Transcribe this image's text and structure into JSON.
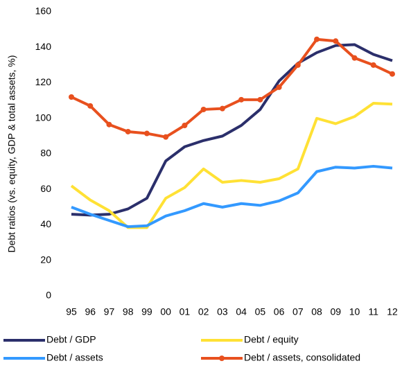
{
  "chart_data": {
    "type": "line",
    "y_label": "Debt ratios (vs. equity, GDP & total assets, %)",
    "categories": [
      "95",
      "96",
      "97",
      "98",
      "99",
      "00",
      "01",
      "02",
      "03",
      "04",
      "05",
      "06",
      "07",
      "08",
      "09",
      "10",
      "11",
      "12"
    ],
    "ylim": [
      0,
      160
    ],
    "yticks": [
      0,
      20,
      40,
      60,
      80,
      100,
      120,
      140,
      160
    ],
    "grid": false,
    "legend": "bottom",
    "series": [
      {
        "name": "Debt / GDP",
        "color": "#2b2f6b",
        "markers": false,
        "values": [
          46,
          45.5,
          46,
          49,
          55,
          76,
          84,
          87.5,
          90,
          96,
          105,
          121,
          131,
          137,
          141,
          141.5,
          136,
          132.5
        ]
      },
      {
        "name": "Debt / equity",
        "color": "#ffe135",
        "markers": false,
        "values": [
          62,
          54,
          48,
          38.5,
          38.5,
          55,
          61,
          71.5,
          64,
          65,
          64,
          66,
          71.5,
          100,
          97,
          101,
          108.5,
          108
        ]
      },
      {
        "name": "Debt / assets",
        "color": "#3399ff",
        "markers": false,
        "values": [
          50,
          46,
          42.5,
          39,
          39.5,
          45,
          48,
          52,
          50,
          52,
          51,
          53.5,
          58,
          70,
          72.5,
          72,
          73,
          72
        ]
      },
      {
        "name": "Debt / assets, consolidated",
        "color": "#e8501e",
        "markers": true,
        "values": [
          112,
          107,
          96.5,
          92.5,
          91.5,
          89.5,
          96,
          105,
          105.5,
          110.5,
          110.5,
          117.5,
          130,
          144.5,
          143.5,
          134,
          130,
          125
        ]
      }
    ]
  }
}
